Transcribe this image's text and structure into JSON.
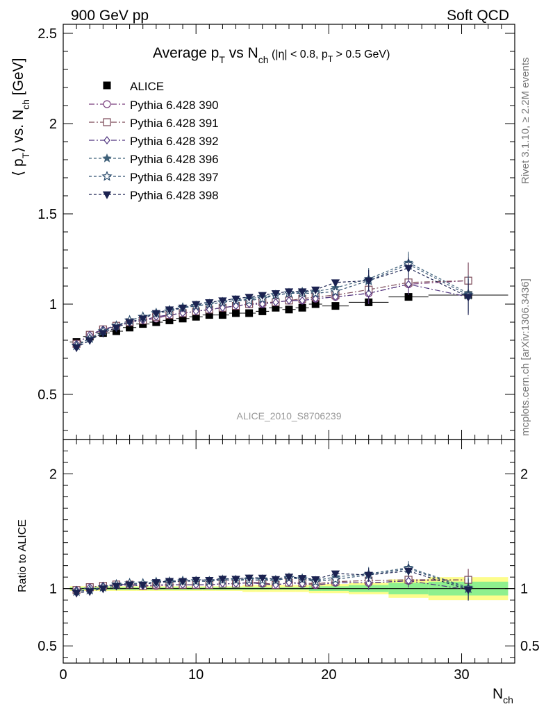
{
  "header": {
    "left": "900 GeV pp",
    "right": "Soft QCD"
  },
  "side_text": {
    "rivet": "Rivet 3.1.10, ≥ 2.2M events",
    "mcplots": "mcplots.cern.ch [arXiv:1306.3436]"
  },
  "watermark": "ALICE_2010_S8706239",
  "title": {
    "pre": "Average p",
    "pt_sub": "T",
    "mid": " vs N",
    "ch_sub": "ch",
    "cut_pre": " (|η| < 0.8, p",
    "cut_sub": "T",
    "cut_post": " > 0.5 GeV)"
  },
  "ylabel": {
    "a": "⟨ p",
    "b": "T",
    "c": "⟩ vs. N",
    "d": "ch",
    "e": " [GeV]"
  },
  "ratio_ylabel": "Ratio to ALICE",
  "xlabel": {
    "main": "N",
    "sub": "ch"
  },
  "colors": {
    "alice": "#000000",
    "p390": "#7a3f7e",
    "p391": "#7a4756",
    "p392": "#50357f",
    "p396": "#3f6079",
    "p397": "#2f4f6f",
    "p398": "#1b2250",
    "band_inner": "#8ef08e",
    "band_outer": "#fdfd8c"
  },
  "chart_data": {
    "type": "scatter",
    "xlim": [
      0,
      34
    ],
    "main_ylim": [
      0.25,
      2.55
    ],
    "ratio_ylim": [
      0.35,
      2.3
    ],
    "main_yticks": [
      "0.5",
      "1",
      "1.5",
      "2",
      "2.5"
    ],
    "ratio_yticks": [
      "0.5",
      "1",
      "2"
    ],
    "xticks": [
      "0",
      "10",
      "20",
      "30"
    ],
    "legend_position": "top-left",
    "grid": false,
    "x": [
      1,
      2,
      3,
      4,
      5,
      6,
      7,
      8,
      9,
      10,
      11,
      12,
      13,
      14,
      15,
      16,
      17,
      18,
      19,
      20.5,
      23,
      26,
      30.5
    ],
    "xerr": [
      0.5,
      0.5,
      0.5,
      0.5,
      0.5,
      0.5,
      0.5,
      0.5,
      0.5,
      0.5,
      0.5,
      0.5,
      0.5,
      0.5,
      0.5,
      0.5,
      0.5,
      0.5,
      0.5,
      1.0,
      1.5,
      1.5,
      3.0
    ],
    "data": {
      "name": "ALICE",
      "values": [
        0.79,
        0.82,
        0.84,
        0.85,
        0.87,
        0.89,
        0.9,
        0.91,
        0.92,
        0.93,
        0.94,
        0.94,
        0.95,
        0.95,
        0.96,
        0.98,
        0.97,
        0.98,
        1.0,
        0.99,
        1.01,
        1.04,
        1.05
      ]
    },
    "band_inner": [
      0.01,
      0.01,
      0.01,
      0.01,
      0.01,
      0.01,
      0.01,
      0.01,
      0.01,
      0.01,
      0.01,
      0.01,
      0.01,
      0.01,
      0.01,
      0.01,
      0.01,
      0.01,
      0.02,
      0.02,
      0.03,
      0.05,
      0.06
    ],
    "band_outer": [
      0.02,
      0.02,
      0.02,
      0.02,
      0.02,
      0.02,
      0.02,
      0.02,
      0.02,
      0.02,
      0.02,
      0.02,
      0.02,
      0.03,
      0.03,
      0.03,
      0.03,
      0.03,
      0.04,
      0.04,
      0.05,
      0.08,
      0.1
    ],
    "series": [
      {
        "name": "Pythia 6.428 390",
        "marker": "circle",
        "dash": "8,3,2,3",
        "values": [
          0.78,
          0.83,
          0.86,
          0.88,
          0.9,
          0.91,
          0.92,
          0.94,
          0.95,
          0.96,
          0.97,
          0.98,
          0.99,
          1.0,
          1.0,
          1.01,
          1.02,
          1.02,
          1.03,
          1.04,
          1.06,
          1.11,
          1.13
        ]
      },
      {
        "name": "Pythia 6.428 391",
        "marker": "square",
        "dash": "8,3,2,3",
        "values": [
          0.78,
          0.83,
          0.86,
          0.88,
          0.9,
          0.91,
          0.93,
          0.94,
          0.95,
          0.96,
          0.97,
          0.98,
          0.99,
          1.0,
          1.01,
          1.01,
          1.02,
          1.03,
          1.04,
          1.05,
          1.08,
          1.12,
          1.13
        ]
      },
      {
        "name": "Pythia 6.428 392",
        "marker": "diamond",
        "dash": "8,3,2,3",
        "values": [
          0.78,
          0.83,
          0.86,
          0.88,
          0.9,
          0.91,
          0.93,
          0.94,
          0.95,
          0.96,
          0.97,
          0.98,
          0.99,
          1.0,
          1.0,
          1.01,
          1.02,
          1.02,
          1.03,
          1.04,
          1.06,
          1.11,
          1.04
        ]
      },
      {
        "name": "Pythia 6.428 396",
        "marker": "star-filled",
        "dash": "4,3",
        "values": [
          0.77,
          0.81,
          0.85,
          0.88,
          0.91,
          0.93,
          0.95,
          0.97,
          0.98,
          0.99,
          1.0,
          1.01,
          1.02,
          1.03,
          1.04,
          1.05,
          1.06,
          1.07,
          1.07,
          1.09,
          1.14,
          1.23,
          1.06
        ]
      },
      {
        "name": "Pythia 6.428 397",
        "marker": "star-open",
        "dash": "4,3",
        "values": [
          0.77,
          0.81,
          0.85,
          0.88,
          0.91,
          0.93,
          0.95,
          0.96,
          0.98,
          0.99,
          1.0,
          1.01,
          1.02,
          1.02,
          1.03,
          1.05,
          1.06,
          1.06,
          1.06,
          1.07,
          1.13,
          1.22,
          1.05
        ]
      },
      {
        "name": "Pythia 6.428 398",
        "marker": "tri-down",
        "dash": "4,3",
        "values": [
          0.76,
          0.8,
          0.84,
          0.87,
          0.9,
          0.92,
          0.95,
          0.97,
          0.98,
          1.0,
          1.01,
          1.02,
          1.03,
          1.04,
          1.05,
          1.06,
          1.07,
          1.07,
          1.08,
          1.12,
          1.13,
          1.2,
          1.04
        ]
      }
    ]
  }
}
